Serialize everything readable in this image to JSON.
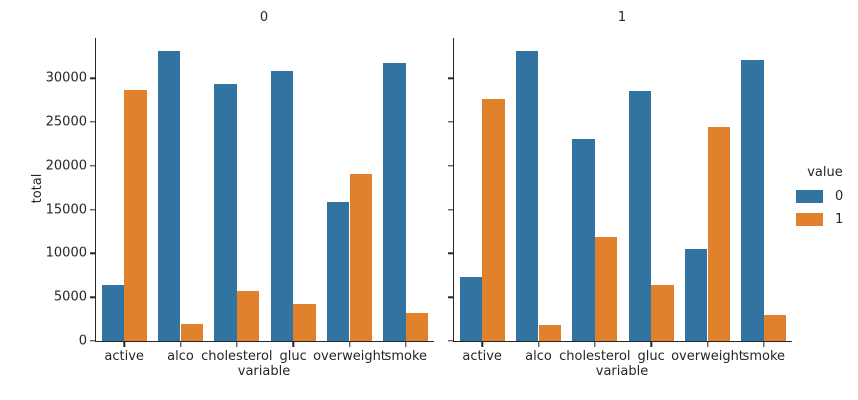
{
  "chart_data": {
    "type": "bar",
    "xlabel": "variable",
    "ylabel": "total",
    "categories": [
      "active",
      "alco",
      "cholesterol",
      "gluc",
      "overweight",
      "smoke"
    ],
    "series_names": [
      "0",
      "1"
    ],
    "series_colors": [
      "#3274a1",
      "#e1812c"
    ],
    "ylim": [
      0,
      34600
    ],
    "yticks": [
      0,
      5000,
      10000,
      15000,
      20000,
      25000,
      30000
    ],
    "grid": false,
    "legend": {
      "title": "value",
      "position": "right",
      "entries": [
        {
          "label": "0",
          "color": "#3274a1"
        },
        {
          "label": "1",
          "color": "#e1812c"
        }
      ]
    },
    "facets": [
      {
        "title": "0",
        "series": [
          {
            "name": "0",
            "values": [
              6378,
              33080,
              29330,
              30825,
              15915,
              31781
            ]
          },
          {
            "name": "1",
            "values": [
              28643,
              1941,
              5691,
              4196,
              19106,
              3240
            ]
          }
        ]
      },
      {
        "title": "1",
        "series": [
          {
            "name": "0",
            "values": [
              7361,
              33156,
              23055,
              28585,
              10539,
              32050
            ]
          },
          {
            "name": "1",
            "values": [
              27618,
              1823,
              11924,
              6394,
              24440,
              2929
            ]
          }
        ]
      }
    ]
  }
}
